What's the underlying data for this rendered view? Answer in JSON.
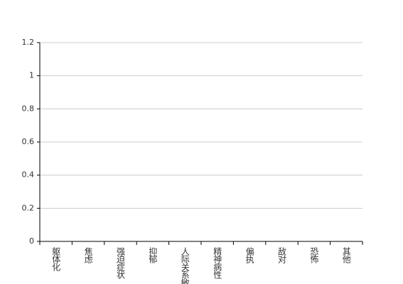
{
  "chart_data": {
    "type": "bar",
    "categories": [
      "躯体化",
      "焦虑",
      "强迫症状",
      "抑郁",
      "人际关系敏感",
      "精神病性",
      "偏执",
      "敌对",
      "恐怖",
      "其他"
    ],
    "values": [
      0,
      0,
      0,
      0,
      0,
      0,
      0,
      0,
      0,
      0
    ],
    "color": "#5b9bd5",
    "ylim": [
      0,
      1.2
    ],
    "yticks": [
      0,
      0.2,
      0.4,
      0.6,
      0.8,
      1,
      1.2
    ],
    "grid": true
  }
}
